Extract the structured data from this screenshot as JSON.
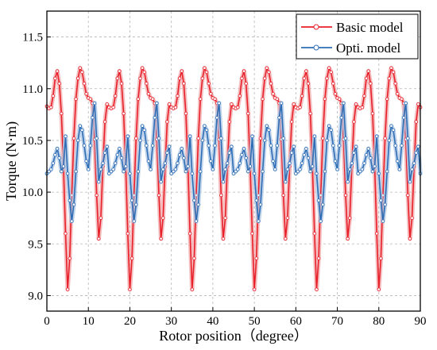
{
  "chart_data": {
    "type": "line",
    "title": "",
    "xlabel": "Rotor position（degree）",
    "ylabel": "Torque (N·m)",
    "xlim": [
      0,
      90
    ],
    "ylim": [
      8.85,
      11.75
    ],
    "x_ticks": [
      0,
      10,
      20,
      30,
      40,
      50,
      60,
      70,
      80,
      90
    ],
    "y_ticks": [
      9.0,
      9.5,
      10.0,
      10.5,
      11.0,
      11.5
    ],
    "x_tick_labels": [
      "0",
      "10",
      "20",
      "30",
      "40",
      "50",
      "60",
      "70",
      "80",
      "90"
    ],
    "y_tick_labels": [
      "9.0",
      "9.5",
      "10.0",
      "10.5",
      "11.0",
      "11.5"
    ],
    "grid": true,
    "legend_position": "top-right",
    "series": [
      {
        "name": "Basic model",
        "color": "#e8202a",
        "marker_color": "#f2a6a8",
        "x": [
          0,
          0.5,
          1,
          1.5,
          2,
          2.5,
          3,
          3.5,
          4,
          4.5,
          5,
          5.5,
          6,
          6.5,
          7,
          7.5,
          8,
          8.5,
          9,
          9.5,
          10,
          10.5,
          11,
          11.5,
          12,
          12.5,
          13,
          13.5,
          14,
          14.5,
          15,
          15.5,
          16,
          16.5,
          17,
          17.5,
          18,
          18.5,
          19,
          19.5,
          20,
          20.5,
          21,
          21.5,
          22,
          22.5,
          23,
          23.5,
          24,
          24.5,
          25,
          25.5,
          26,
          26.5,
          27,
          27.5,
          28,
          28.5,
          29,
          29.5,
          30,
          30.5,
          31,
          31.5,
          32,
          32.5,
          33,
          33.5,
          34,
          34.5,
          35,
          35.5,
          36,
          36.5,
          37,
          37.5,
          38,
          38.5,
          39,
          39.5,
          40,
          40.5,
          41,
          41.5,
          42,
          42.5,
          43,
          43.5,
          44,
          44.5,
          45,
          45.5,
          46,
          46.5,
          47,
          47.5,
          48,
          48.5,
          49,
          49.5,
          50,
          50.5,
          51,
          51.5,
          52,
          52.5,
          53,
          53.5,
          54,
          54.5,
          55,
          55.5,
          56,
          56.5,
          57,
          57.5,
          58,
          58.5,
          59,
          59.5,
          60,
          60.5,
          61,
          61.5,
          62,
          62.5,
          63,
          63.5,
          64,
          64.5,
          65,
          65.5,
          66,
          66.5,
          67,
          67.5,
          68,
          68.5,
          69,
          69.5,
          70,
          70.5,
          71,
          71.5,
          72,
          72.5,
          73,
          73.5,
          74,
          74.5,
          75,
          75.5,
          76,
          76.5,
          77,
          77.5,
          78,
          78.5,
          79,
          79.5,
          80,
          80.5,
          81,
          81.5,
          82,
          82.5,
          83,
          83.5,
          84,
          84.5,
          85,
          85.5,
          86,
          86.5,
          87,
          87.5,
          88,
          88.5,
          89,
          89.5,
          90
        ],
        "y": [
          10.83,
          10.81,
          10.82,
          10.93,
          11.1,
          11.17,
          11.05,
          10.76,
          10.25,
          9.6,
          9.06,
          9.36,
          9.97,
          10.52,
          10.9,
          11.1,
          11.2,
          11.16,
          11.05,
          10.95,
          10.91,
          10.9,
          10.86,
          10.51,
          9.97,
          9.55,
          9.75,
          10.25,
          10.68,
          10.85,
          10.82,
          10.81,
          10.82,
          10.93,
          11.1,
          11.17,
          11.05,
          10.76,
          10.25,
          9.6,
          9.06,
          9.36,
          9.97,
          10.52,
          10.9,
          11.1,
          11.2,
          11.16,
          11.05,
          10.95,
          10.91,
          10.9,
          10.86,
          10.51,
          9.97,
          9.55,
          9.75,
          10.25,
          10.68,
          10.85,
          10.82,
          10.81,
          10.82,
          10.93,
          11.1,
          11.17,
          11.05,
          10.76,
          10.25,
          9.6,
          9.06,
          9.36,
          9.97,
          10.52,
          10.9,
          11.1,
          11.2,
          11.16,
          11.05,
          10.95,
          10.91,
          10.9,
          10.86,
          10.51,
          9.97,
          9.55,
          9.75,
          10.25,
          10.68,
          10.85,
          10.82,
          10.81,
          10.82,
          10.93,
          11.1,
          11.17,
          11.05,
          10.76,
          10.25,
          9.6,
          9.06,
          9.36,
          9.97,
          10.52,
          10.9,
          11.1,
          11.2,
          11.16,
          11.05,
          10.95,
          10.91,
          10.9,
          10.86,
          10.51,
          9.97,
          9.55,
          9.75,
          10.25,
          10.68,
          10.85,
          10.82,
          10.81,
          10.82,
          10.93,
          11.1,
          11.17,
          11.05,
          10.76,
          10.25,
          9.6,
          9.06,
          9.36,
          9.97,
          10.52,
          10.9,
          11.1,
          11.2,
          11.16,
          11.05,
          10.95,
          10.91,
          10.9,
          10.86,
          10.51,
          9.97,
          9.55,
          9.75,
          10.25,
          10.68,
          10.85,
          10.82,
          10.81,
          10.82,
          10.93,
          11.1,
          11.17,
          11.05,
          10.76,
          10.25,
          9.6,
          9.06,
          9.36,
          9.97,
          10.52,
          10.9,
          11.1,
          11.2,
          11.16,
          11.05,
          10.95,
          10.91,
          10.9,
          10.86,
          10.51,
          9.97,
          9.55,
          9.75,
          10.25,
          10.68,
          10.85,
          10.82
        ]
      },
      {
        "name": "Opti. model",
        "color": "#2e6db4",
        "marker_color": "#a9c6e6",
        "x": [
          0,
          0.5,
          1,
          1.5,
          2,
          2.5,
          3,
          3.5,
          4,
          4.5,
          5,
          5.5,
          6,
          6.5,
          7,
          7.5,
          8,
          8.5,
          9,
          9.5,
          10,
          10.5,
          11,
          11.5,
          12,
          12.5,
          13,
          13.5,
          14,
          14.5,
          15,
          15.5,
          16,
          16.5,
          17,
          17.5,
          18,
          18.5,
          19,
          19.5,
          20,
          20.5,
          21,
          21.5,
          22,
          22.5,
          23,
          23.5,
          24,
          24.5,
          25,
          25.5,
          26,
          26.5,
          27,
          27.5,
          28,
          28.5,
          29,
          29.5,
          30,
          30.5,
          31,
          31.5,
          32,
          32.5,
          33,
          33.5,
          34,
          34.5,
          35,
          35.5,
          36,
          36.5,
          37,
          37.5,
          38,
          38.5,
          39,
          39.5,
          40,
          40.5,
          41,
          41.5,
          42,
          42.5,
          43,
          43.5,
          44,
          44.5,
          45,
          45.5,
          46,
          46.5,
          47,
          47.5,
          48,
          48.5,
          49,
          49.5,
          50,
          50.5,
          51,
          51.5,
          52,
          52.5,
          53,
          53.5,
          54,
          54.5,
          55,
          55.5,
          56,
          56.5,
          57,
          57.5,
          58,
          58.5,
          59,
          59.5,
          60,
          60.5,
          61,
          61.5,
          62,
          62.5,
          63,
          63.5,
          64,
          64.5,
          65,
          65.5,
          66,
          66.5,
          67,
          67.5,
          68,
          68.5,
          69,
          69.5,
          70,
          70.5,
          71,
          71.5,
          72,
          72.5,
          73,
          73.5,
          74,
          74.5,
          75,
          75.5,
          76,
          76.5,
          77,
          77.5,
          78,
          78.5,
          79,
          79.5,
          80,
          80.5,
          81,
          81.5,
          82,
          82.5,
          83,
          83.5,
          84,
          84.5,
          85,
          85.5,
          86,
          86.5,
          87,
          87.5,
          88,
          88.5,
          89,
          89.5,
          90
        ],
        "y": [
          10.18,
          10.2,
          10.22,
          10.28,
          10.36,
          10.42,
          10.33,
          10.2,
          10.25,
          10.54,
          10.18,
          9.92,
          9.72,
          9.88,
          10.2,
          10.5,
          10.64,
          10.6,
          10.45,
          10.3,
          10.22,
          10.45,
          10.72,
          10.86,
          10.52,
          10.1,
          10.22,
          10.28,
          10.38,
          10.44,
          10.18,
          10.2,
          10.22,
          10.28,
          10.36,
          10.42,
          10.33,
          10.2,
          10.25,
          10.54,
          10.18,
          9.92,
          9.72,
          9.88,
          10.2,
          10.5,
          10.64,
          10.6,
          10.45,
          10.3,
          10.22,
          10.45,
          10.72,
          10.86,
          10.52,
          10.1,
          10.22,
          10.28,
          10.38,
          10.44,
          10.18,
          10.2,
          10.22,
          10.28,
          10.36,
          10.42,
          10.33,
          10.2,
          10.25,
          10.54,
          10.18,
          9.92,
          9.72,
          9.88,
          10.2,
          10.5,
          10.64,
          10.6,
          10.45,
          10.3,
          10.22,
          10.45,
          10.72,
          10.86,
          10.52,
          10.1,
          10.22,
          10.28,
          10.38,
          10.44,
          10.18,
          10.2,
          10.22,
          10.28,
          10.36,
          10.42,
          10.33,
          10.2,
          10.25,
          10.54,
          10.18,
          9.92,
          9.72,
          9.88,
          10.2,
          10.5,
          10.64,
          10.6,
          10.45,
          10.3,
          10.22,
          10.45,
          10.72,
          10.86,
          10.52,
          10.1,
          10.22,
          10.28,
          10.38,
          10.44,
          10.18,
          10.2,
          10.22,
          10.28,
          10.36,
          10.42,
          10.33,
          10.2,
          10.25,
          10.54,
          10.18,
          9.92,
          9.72,
          9.88,
          10.2,
          10.5,
          10.64,
          10.6,
          10.45,
          10.3,
          10.22,
          10.45,
          10.72,
          10.86,
          10.52,
          10.1,
          10.22,
          10.28,
          10.38,
          10.44,
          10.18,
          10.2,
          10.22,
          10.28,
          10.36,
          10.42,
          10.33,
          10.2,
          10.25,
          10.54,
          10.18,
          9.92,
          9.72,
          9.88,
          10.2,
          10.5,
          10.64,
          10.6,
          10.45,
          10.3,
          10.22,
          10.45,
          10.72,
          10.86,
          10.52,
          10.1,
          10.22,
          10.28,
          10.38,
          10.44,
          10.18
        ]
      }
    ]
  }
}
